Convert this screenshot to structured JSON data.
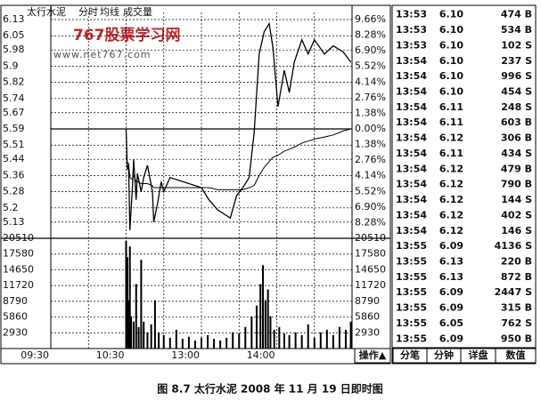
{
  "chart_data": {
    "type": "line",
    "title": "太行水泥",
    "x": [
      "10:30",
      "10:31",
      "10:32",
      "10:33",
      "10:35",
      "10:36",
      "10:38",
      "10:39",
      "10:42",
      "10:44",
      "10:47",
      "10:51",
      "10:52",
      "10:55",
      "10:58",
      "11:00",
      "11:05",
      "11:30",
      "13:06",
      "13:13",
      "13:23",
      "13:28",
      "13:33",
      "13:38",
      "13:42",
      "13:46",
      "13:50",
      "13:54",
      "13:57",
      "14:01",
      "14:06",
      "14:10",
      "14:14",
      "14:20",
      "14:25",
      "14:30",
      "14:38",
      "14:45",
      "14:53",
      "14:59"
    ],
    "series": [
      {
        "name": "分时",
        "color": "#000000",
        "values": [
          5.59,
          5.39,
          5.41,
          5.09,
          5.3,
          5.44,
          5.24,
          5.37,
          5.28,
          5.35,
          5.41,
          5.28,
          5.13,
          5.22,
          5.33,
          5.28,
          5.35,
          5.3,
          5.24,
          5.19,
          5.15,
          5.26,
          5.3,
          5.35,
          5.57,
          5.96,
          6.07,
          6.11,
          5.99,
          5.7,
          5.88,
          5.77,
          5.92,
          6.03,
          5.96,
          6.03,
          5.96,
          6.0,
          5.97,
          5.92
        ]
      },
      {
        "name": "均线",
        "color": "#000000",
        "values": [
          5.45,
          5.42,
          5.42,
          5.35,
          5.34,
          5.36,
          5.33,
          5.33,
          5.32,
          5.32,
          5.32,
          5.31,
          5.3,
          5.3,
          5.3,
          5.3,
          5.3,
          5.3,
          5.3,
          5.29,
          5.29,
          5.29,
          5.29,
          5.3,
          5.31,
          5.36,
          5.4,
          5.43,
          5.45,
          5.46,
          5.48,
          5.49,
          5.5,
          5.52,
          5.53,
          5.54,
          5.55,
          5.56,
          5.58,
          5.59
        ]
      }
    ],
    "ylim": [
      5.05,
      6.13
    ],
    "yticks": [
      6.13,
      6.05,
      5.98,
      5.9,
      5.82,
      5.74,
      5.67,
      5.59,
      5.51,
      5.44,
      5.36,
      5.28,
      5.2,
      5.13
    ],
    "y2lim": [
      -9.66,
      9.66
    ],
    "y2ticks": [
      {
        "value": 9.66,
        "label": "9.66%"
      },
      {
        "value": 8.28,
        "label": "8.28%"
      },
      {
        "value": 6.9,
        "label": "6.90%"
      },
      {
        "value": 5.52,
        "label": "5.52%"
      },
      {
        "value": 4.14,
        "label": "4.14%"
      },
      {
        "value": 2.76,
        "label": "2.76%"
      },
      {
        "value": 1.38,
        "label": "1.38%"
      },
      {
        "value": 0,
        "label": "0.00%"
      },
      {
        "value": -1.38,
        "label": "1.38%"
      },
      {
        "value": -2.76,
        "label": "2.76%"
      },
      {
        "value": -4.14,
        "label": "4.14%"
      },
      {
        "value": -5.52,
        "label": "5.52%"
      },
      {
        "value": -6.9,
        "label": "6.90%"
      },
      {
        "value": -8.28,
        "label": "8.28%"
      }
    ],
    "xticks": [
      "09:30",
      "10:30",
      "13:00",
      "14:00"
    ],
    "grid": true,
    "volume": {
      "name": "成交量",
      "color": "#000000",
      "x": [
        "10:30",
        "10:31",
        "10:32",
        "10:33",
        "10:34",
        "10:36",
        "10:38",
        "10:40",
        "10:42",
        "10:44",
        "10:47",
        "10:50",
        "10:53",
        "10:56",
        "11:00",
        "11:05",
        "11:10",
        "11:15",
        "11:20",
        "11:25",
        "11:30",
        "13:05",
        "13:10",
        "13:15",
        "13:20",
        "13:25",
        "13:30",
        "13:35",
        "13:40",
        "13:44",
        "13:47",
        "13:49",
        "13:51",
        "13:53",
        "13:55",
        "13:58",
        "14:02",
        "14:06",
        "14:10",
        "14:15",
        "14:20",
        "14:25",
        "14:30",
        "14:35",
        "14:40",
        "14:45",
        "14:50",
        "14:55",
        "14:59"
      ],
      "values": [
        20000,
        17000,
        9000,
        19000,
        6000,
        5000,
        12000,
        4000,
        16500,
        5000,
        3000,
        4500,
        9000,
        3000,
        2500,
        2000,
        3500,
        1800,
        2200,
        1500,
        2000,
        2500,
        1800,
        1500,
        2000,
        3000,
        2800,
        4000,
        6000,
        8000,
        12000,
        15500,
        9000,
        11000,
        6000,
        3500,
        4000,
        2800,
        2500,
        3000,
        2500,
        4500,
        2000,
        3000,
        3500,
        2500,
        4000,
        3500,
        5000
      ],
      "ylim": [
        0,
        20510
      ],
      "yticks": [
        20510,
        17580,
        14650,
        11720,
        8790,
        5860,
        2930
      ]
    }
  },
  "watermark": {
    "title": "767股票学习网",
    "url": "www.net767.com"
  },
  "trades": {
    "rows": [
      [
        "13:53",
        "6.10",
        "474 B"
      ],
      [
        "13:53",
        "6.10",
        "534 B"
      ],
      [
        "13:53",
        "6.10",
        "102 S"
      ],
      [
        "13:54",
        "6.10",
        "237 S"
      ],
      [
        "13:54",
        "6.10",
        "996 S"
      ],
      [
        "13:54",
        "6.10",
        "454 S"
      ],
      [
        "13:54",
        "6.11",
        "248 S"
      ],
      [
        "13:54",
        "6.11",
        "603 B"
      ],
      [
        "13:54",
        "6.12",
        "306 B"
      ],
      [
        "13:54",
        "6.11",
        "434 S"
      ],
      [
        "13:54",
        "6.12",
        "479 B"
      ],
      [
        "13:54",
        "6.12",
        "790 B"
      ],
      [
        "13:54",
        "6.12",
        "144 S"
      ],
      [
        "13:54",
        "6.12",
        "402 S"
      ],
      [
        "13:54",
        "6.12",
        "146 S"
      ],
      [
        "13:55",
        "6.09",
        "4136 S"
      ],
      [
        "13:55",
        "6.13",
        "220 B"
      ],
      [
        "13:55",
        "6.13",
        "872 B"
      ],
      [
        "13:55",
        "6.09",
        "2447 S"
      ],
      [
        "13:55",
        "6.09",
        "315 B"
      ],
      [
        "13:55",
        "6.05",
        "762 S"
      ],
      [
        "13:55",
        "6.09",
        "950 B"
      ]
    ]
  },
  "buttons": [
    "操作▲",
    "分笔",
    "分钟",
    "详盘",
    "数值"
  ],
  "caption": "图 8.7   太行水泥 2008 年 11 月 19 日即时图"
}
